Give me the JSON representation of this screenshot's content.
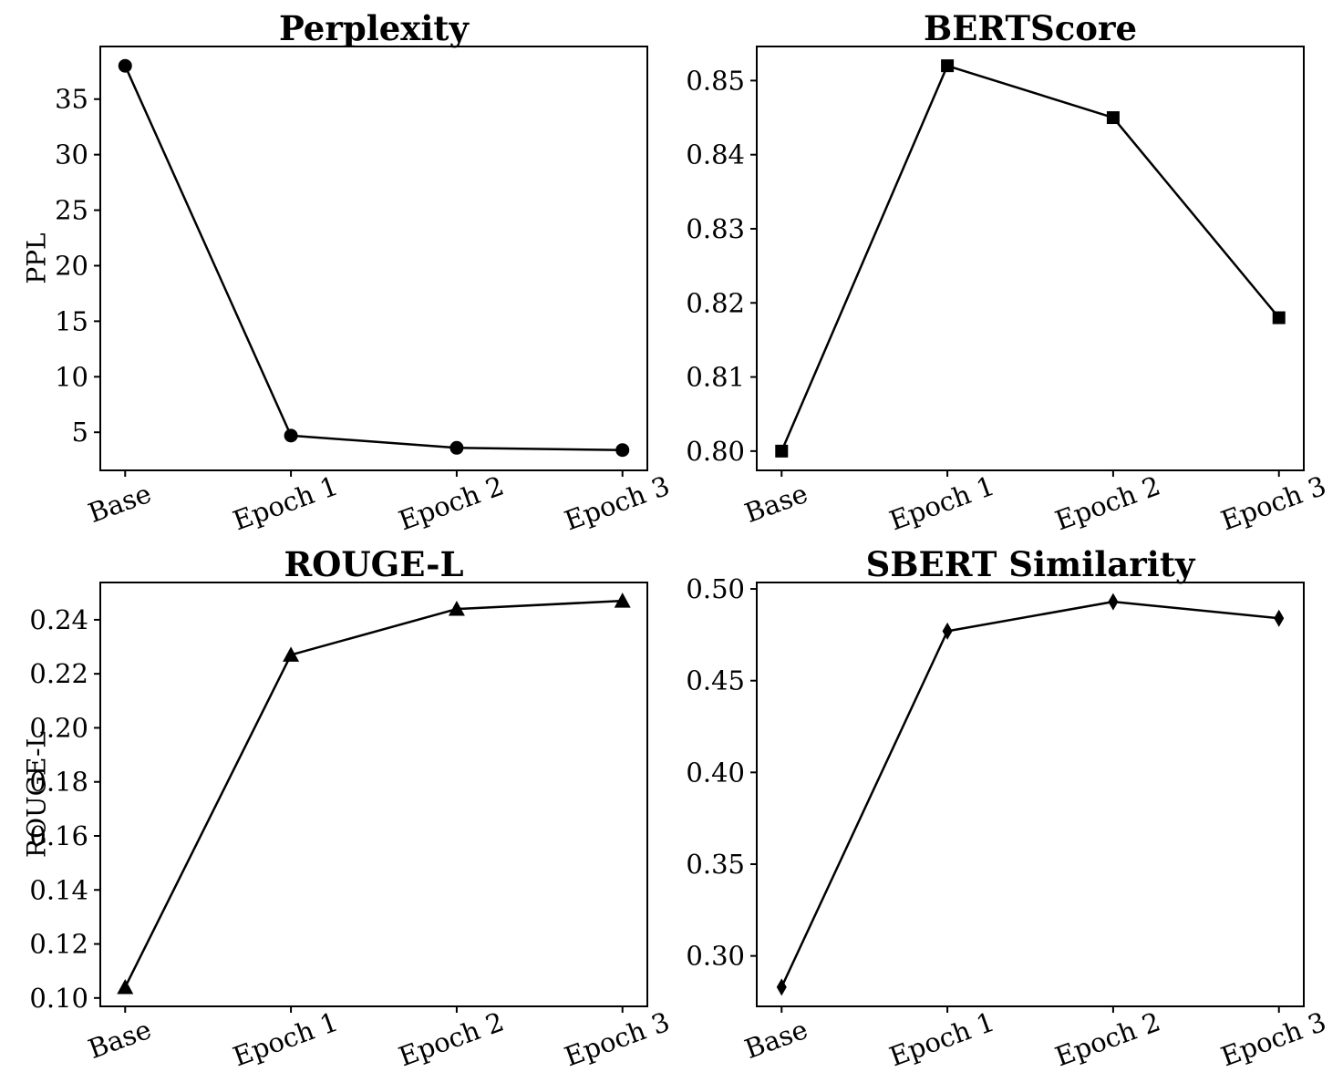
{
  "figure": {
    "background_color": "#ffffff",
    "foreground_color": "#000000"
  },
  "chart_data": [
    {
      "id": "perplexity",
      "type": "line",
      "title": "Perplexity",
      "ylabel": "PPL",
      "xlabel": "",
      "categories": [
        "Base",
        "Epoch 1",
        "Epoch 2",
        "Epoch 3"
      ],
      "values": [
        38.0,
        4.7,
        3.6,
        3.4
      ],
      "marker": "circle",
      "line_color": "#000000",
      "xlim": [
        -0.15,
        3.15
      ],
      "ylim": [
        1.57,
        39.74
      ],
      "yticks": [
        5,
        10,
        15,
        20,
        25,
        30,
        35
      ],
      "ytick_labels": [
        "5",
        "10",
        "15",
        "20",
        "25",
        "30",
        "35"
      ],
      "grid": false,
      "legend_position": null
    },
    {
      "id": "bertscore",
      "type": "line",
      "title": "BERTScore",
      "ylabel": "",
      "xlabel": "",
      "categories": [
        "Base",
        "Epoch 1",
        "Epoch 2",
        "Epoch 3"
      ],
      "values": [
        0.8,
        0.852,
        0.845,
        0.818
      ],
      "marker": "square",
      "line_color": "#000000",
      "xlim": [
        -0.15,
        3.15
      ],
      "ylim": [
        0.7974,
        0.8546
      ],
      "yticks": [
        0.8,
        0.81,
        0.82,
        0.83,
        0.84,
        0.85
      ],
      "ytick_labels": [
        "0.80",
        "0.81",
        "0.82",
        "0.83",
        "0.84",
        "0.85"
      ],
      "grid": false,
      "legend_position": null
    },
    {
      "id": "rouge_l",
      "type": "line",
      "title": "ROUGE-L",
      "ylabel": "ROUGE-L",
      "xlabel": "",
      "categories": [
        "Base",
        "Epoch 1",
        "Epoch 2",
        "Epoch 3"
      ],
      "values": [
        0.104,
        0.227,
        0.244,
        0.247
      ],
      "marker": "triangle",
      "line_color": "#000000",
      "xlim": [
        -0.15,
        3.15
      ],
      "ylim": [
        0.0969,
        0.2538
      ],
      "yticks": [
        0.1,
        0.12,
        0.14,
        0.16,
        0.18,
        0.2,
        0.22,
        0.24
      ],
      "ytick_labels": [
        "0.10",
        "0.12",
        "0.14",
        "0.16",
        "0.18",
        "0.20",
        "0.22",
        "0.24"
      ],
      "grid": false,
      "legend_position": null
    },
    {
      "id": "sbert_similarity",
      "type": "line",
      "title": "SBERT Similarity",
      "ylabel": "",
      "xlabel": "",
      "categories": [
        "Base",
        "Epoch 1",
        "Epoch 2",
        "Epoch 3"
      ],
      "values": [
        0.283,
        0.477,
        0.493,
        0.484
      ],
      "marker": "diamond",
      "line_color": "#000000",
      "xlim": [
        -0.15,
        3.15
      ],
      "ylim": [
        0.2725,
        0.5035
      ],
      "yticks": [
        0.3,
        0.35,
        0.4,
        0.45,
        0.5
      ],
      "ytick_labels": [
        "0.30",
        "0.35",
        "0.40",
        "0.45",
        "0.50"
      ],
      "grid": false,
      "legend_position": null
    }
  ]
}
